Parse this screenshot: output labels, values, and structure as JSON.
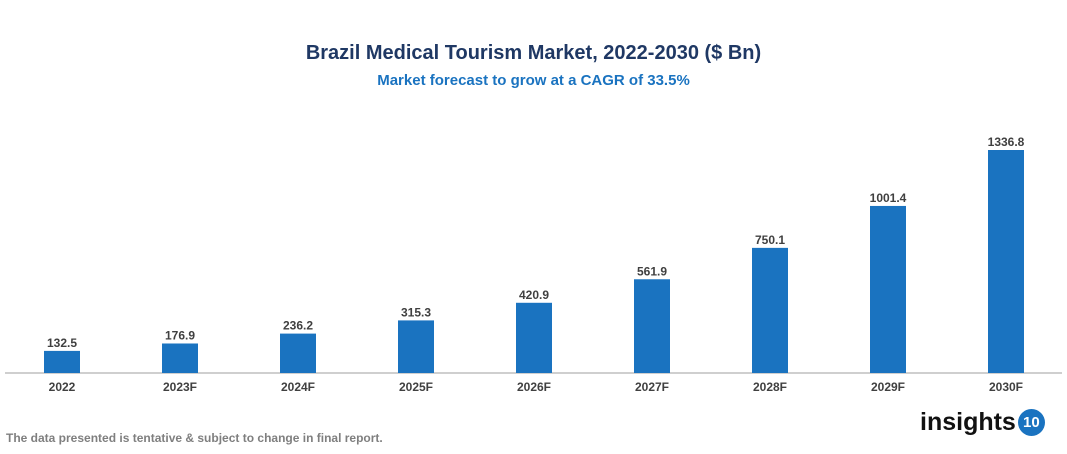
{
  "chart_data": {
    "type": "bar",
    "title": "Brazil Medical Tourism Market, 2022-2030 ($ Bn)",
    "subtitle": "Market forecast to grow at a CAGR of 33.5%",
    "categories": [
      "2022",
      "2023F",
      "2024F",
      "2025F",
      "2026F",
      "2027F",
      "2028F",
      "2029F",
      "2030F"
    ],
    "values": [
      132.5,
      176.9,
      236.2,
      315.3,
      420.9,
      561.9,
      750.1,
      1001.4,
      1336.8
    ],
    "value_labels": [
      "132.5",
      "176.9",
      "236.2",
      "315.3",
      "420.9",
      "561.9",
      "750.1",
      "1001.4",
      "1336.8"
    ],
    "xlabel": "",
    "ylabel": "",
    "ylim": [
      0,
      1336.8
    ],
    "grid": false,
    "bar_color": "#1a73c0"
  },
  "footnote": "The data presented is tentative & subject to change in final report.",
  "logo": {
    "text": "insights",
    "badge": "10"
  }
}
